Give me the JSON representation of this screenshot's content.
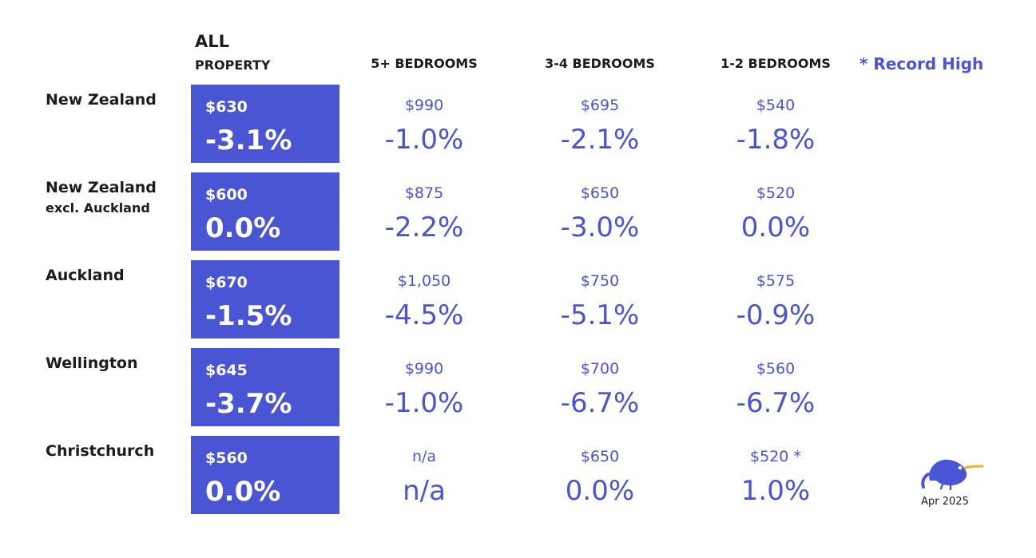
{
  "colors": {
    "accent": "#4a55d4",
    "text": "#1c1c1c"
  },
  "headers": {
    "all_line1": "ALL",
    "all_line2": "PROPERTY",
    "columns": [
      "5+ BEDROOMS",
      "3-4 BEDROOMS",
      "1-2 BEDROOMS"
    ],
    "record_note": "* Record High"
  },
  "footer": {
    "date": "Apr 2025",
    "logo_icon": "kiwi-bird-icon"
  },
  "chart_data": {
    "type": "table",
    "columns": [
      "ALL PROPERTY",
      "5+ BEDROOMS",
      "3-4 BEDROOMS",
      "1-2 BEDROOMS"
    ],
    "rows": [
      {
        "region": "New Zealand",
        "sub": "",
        "all": {
          "price": "$630",
          "change": "-3.1%"
        },
        "cells": [
          {
            "price": "$990",
            "change": "-1.0%"
          },
          {
            "price": "$695",
            "change": "-2.1%"
          },
          {
            "price": "$540",
            "change": "-1.8%"
          }
        ]
      },
      {
        "region": "New Zealand",
        "sub": "excl. Auckland",
        "all": {
          "price": "$600",
          "change": "0.0%"
        },
        "cells": [
          {
            "price": "$875",
            "change": "-2.2%"
          },
          {
            "price": "$650",
            "change": "-3.0%"
          },
          {
            "price": "$520",
            "change": "0.0%"
          }
        ]
      },
      {
        "region": "Auckland",
        "sub": "",
        "all": {
          "price": "$670",
          "change": "-1.5%"
        },
        "cells": [
          {
            "price": "$1,050",
            "change": "-4.5%"
          },
          {
            "price": "$750",
            "change": "-5.1%"
          },
          {
            "price": "$575",
            "change": "-0.9%"
          }
        ]
      },
      {
        "region": "Wellington",
        "sub": "",
        "all": {
          "price": "$645",
          "change": "-3.7%"
        },
        "cells": [
          {
            "price": "$990",
            "change": "-1.0%"
          },
          {
            "price": "$700",
            "change": "-6.7%"
          },
          {
            "price": "$560",
            "change": "-6.7%"
          }
        ]
      },
      {
        "region": "Christchurch",
        "sub": "",
        "all": {
          "price": "$560",
          "change": "0.0%"
        },
        "cells": [
          {
            "price": "n/a",
            "change": "n/a"
          },
          {
            "price": "$650",
            "change": "0.0%"
          },
          {
            "price": "$520 *",
            "change": "1.0%"
          }
        ]
      }
    ]
  }
}
